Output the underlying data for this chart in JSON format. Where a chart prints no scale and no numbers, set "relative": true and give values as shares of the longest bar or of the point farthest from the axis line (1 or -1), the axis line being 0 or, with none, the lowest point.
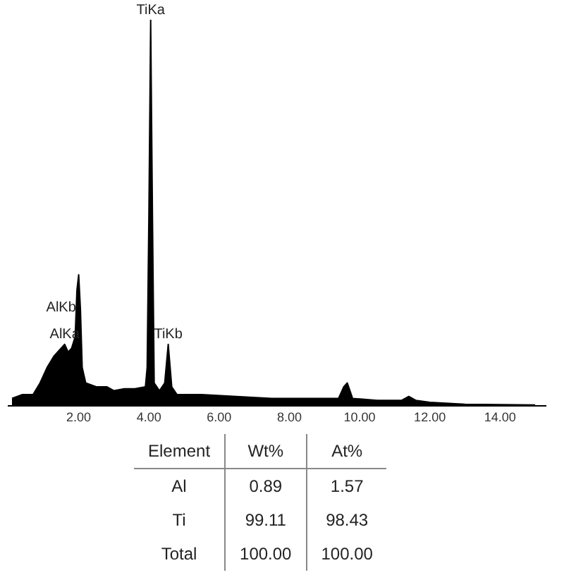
{
  "chart_data": [
    {
      "type": "area",
      "relative": true,
      "color": "#000000",
      "grid": false,
      "legend": false,
      "x": [
        0.1,
        0.4,
        0.7,
        0.9,
        1.1,
        1.3,
        1.5,
        1.6,
        1.7,
        1.8,
        1.9,
        1.95,
        2.0,
        2.05,
        2.1,
        2.2,
        2.5,
        2.8,
        3.0,
        3.3,
        3.6,
        3.9,
        3.95,
        4.0,
        4.05,
        4.1,
        4.15,
        4.3,
        4.45,
        4.55,
        4.65,
        4.8,
        5.5,
        6.5,
        7.5,
        8.5,
        9.4,
        9.55,
        9.65,
        9.8,
        10.5,
        11.2,
        11.4,
        11.6,
        12,
        13,
        14,
        15
      ],
      "values": [
        0.02,
        0.03,
        0.03,
        0.06,
        0.1,
        0.13,
        0.15,
        0.16,
        0.14,
        0.15,
        0.18,
        0.3,
        0.34,
        0.25,
        0.1,
        0.06,
        0.05,
        0.05,
        0.04,
        0.045,
        0.045,
        0.05,
        0.1,
        0.5,
        1.0,
        0.5,
        0.06,
        0.04,
        0.06,
        0.16,
        0.05,
        0.03,
        0.03,
        0.025,
        0.02,
        0.02,
        0.02,
        0.05,
        0.06,
        0.02,
        0.015,
        0.015,
        0.025,
        0.015,
        0.01,
        0.005,
        0.004,
        0.003
      ],
      "xlim": [
        0,
        15.3
      ],
      "xticks": [
        {
          "value": 2,
          "label": "2.00"
        },
        {
          "value": 4,
          "label": "4.00"
        },
        {
          "value": 6,
          "label": "6.00"
        },
        {
          "value": 8,
          "label": "8.00"
        },
        {
          "value": 10,
          "label": "10.00"
        },
        {
          "value": 12,
          "label": "12.00"
        },
        {
          "value": 14,
          "label": "14.00"
        }
      ],
      "annotations": [
        {
          "text": "TiKa",
          "x": 4.05,
          "y": 1.0
        },
        {
          "text": "TiKb",
          "x": 4.55,
          "y": 0.16
        },
        {
          "text": "AlKb",
          "x": 1.5,
          "y": 0.15
        },
        {
          "text": "AlKa",
          "x": 1.6,
          "y": 0.16
        }
      ]
    },
    {
      "type": "other",
      "annotations": [
        "Element",
        "Wt%",
        "At%",
        "Al",
        "0.89",
        "1.57",
        "Ti",
        "99.11",
        "98.43",
        "Total",
        "100.00",
        "100.00"
      ]
    }
  ]
}
